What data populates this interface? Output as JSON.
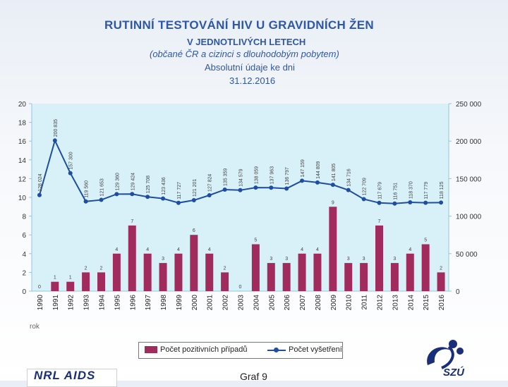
{
  "title": {
    "line1": "RUTINNÍ TESTOVÁNÍ HIV U GRAVIDNÍCH ŽEN",
    "line2": "V JEDNOTLIVÝCH LETECH",
    "line3": "(občané ČR a cizinci s dlouhodobým pobytem)",
    "line4": "Absolutní údaje ke dni",
    "line5": "31.12.2016"
  },
  "footer": {
    "org": "NRL AIDS",
    "graph": "Graf 9",
    "logo": "SZÚ"
  },
  "colors": {
    "plot_bg": "#d8f1f8",
    "bar": "#a22b5d",
    "line": "#1d4ea3",
    "axis": "#8fc6e8"
  },
  "chart_data": {
    "type": "bar",
    "categories": [
      "1990",
      "1991",
      "1992",
      "1993",
      "1994",
      "1995",
      "1996",
      "1997",
      "1998",
      "1999",
      "2000",
      "2001",
      "2002",
      "2003",
      "2004",
      "2005",
      "2006",
      "2007",
      "2008",
      "2009",
      "2010",
      "2011",
      "2012",
      "2013",
      "2014",
      "2015",
      "2016"
    ],
    "xlabel": "rok",
    "ylabel": "",
    "ylim": [
      0,
      20
    ],
    "yticks": [
      0,
      2,
      4,
      6,
      8,
      10,
      12,
      14,
      16,
      18,
      20
    ],
    "y2lim": [
      0,
      250000
    ],
    "y2ticks": [
      "0",
      "50 000",
      "100 000",
      "150 000",
      "200 000",
      "250 000"
    ],
    "grid": false,
    "legend_position": "bottom",
    "series": [
      {
        "name": "Počet pozitivních případů",
        "type": "bar",
        "axis": "left",
        "values": [
          0,
          1,
          1,
          2,
          2,
          4,
          7,
          4,
          3,
          4,
          6,
          4,
          2,
          0,
          5,
          3,
          3,
          4,
          4,
          9,
          3,
          3,
          7,
          3,
          4,
          5,
          2
        ]
      },
      {
        "name": "Počet vyšetření",
        "type": "line",
        "axis": "right",
        "values": [
          128024,
          200835,
          157300,
          119560,
          121653,
          129360,
          129424,
          125708,
          123436,
          117727,
          121201,
          127824,
          135359,
          134579,
          138059,
          137963,
          136797,
          147159,
          144809,
          141805,
          134716,
          122709,
          117679,
          116751,
          118370,
          117779,
          118125
        ],
        "labels": [
          "128 024",
          "200 835",
          "157 300",
          "119 560",
          "121 653",
          "129 360",
          "129 424",
          "125 708",
          "123 436",
          "117 727",
          "121 201",
          "127 824",
          "135 359",
          "134 579",
          "138 059",
          "137 963",
          "136 797",
          "147 159",
          "144 809",
          "141 805",
          "134 716",
          "122 709",
          "117 679",
          "116 751",
          "118 370",
          "117 779",
          "118 125"
        ]
      }
    ]
  }
}
